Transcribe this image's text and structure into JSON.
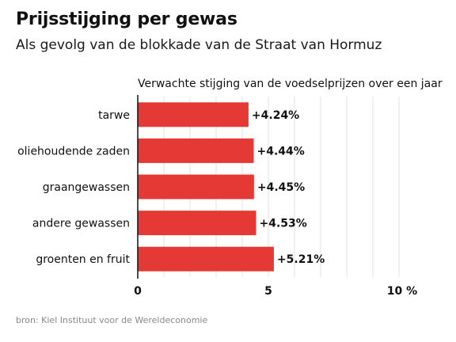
{
  "header": {
    "title": "Prijsstijging per gewas",
    "subtitle": "Als gevolg van de blokkade van de Straat van Hormuz"
  },
  "chart_data": {
    "type": "bar",
    "orientation": "horizontal",
    "title": "Verwachte stijging van de voedselprijzen over een jaar",
    "categories": [
      "tarwe",
      "oliehoudende zaden",
      "graangewassen",
      "andere gewassen",
      "groenten en fruit"
    ],
    "values": [
      4.24,
      4.44,
      4.45,
      4.53,
      5.21
    ],
    "value_labels": [
      "+4.24%",
      "+4.44%",
      "+4.45%",
      "+4.53%",
      "+5.21%"
    ],
    "xlim": [
      0,
      10
    ],
    "ticks": [
      0,
      5,
      10
    ],
    "tick_labels": [
      "0",
      "5",
      "10 %"
    ],
    "grid": true,
    "bar_color": "#e53935"
  },
  "footer": {
    "source": "bron: Kiel Instituut voor de Wereldeconomie"
  }
}
